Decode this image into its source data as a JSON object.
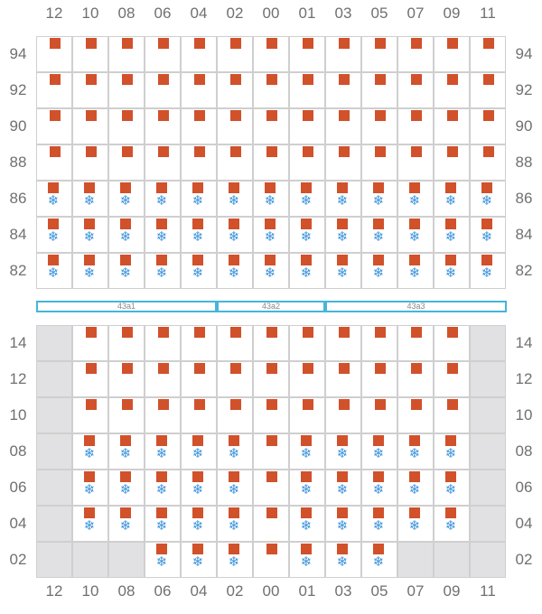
{
  "bays": [
    "12",
    "10",
    "08",
    "06",
    "04",
    "02",
    "00",
    "01",
    "03",
    "05",
    "07",
    "09",
    "11"
  ],
  "deck": {
    "tiers": [
      "94",
      "92",
      "90",
      "88",
      "86",
      "84",
      "82"
    ],
    "cells": [
      [
        "B",
        "B",
        "B",
        "B",
        "B",
        "B",
        "B",
        "B",
        "B",
        "B",
        "B",
        "B",
        "B"
      ],
      [
        "B",
        "B",
        "B",
        "B",
        "B",
        "B",
        "B",
        "B",
        "B",
        "B",
        "B",
        "B",
        "B"
      ],
      [
        "B",
        "B",
        "B",
        "B",
        "B",
        "B",
        "B",
        "B",
        "B",
        "B",
        "B",
        "B",
        "B"
      ],
      [
        "B",
        "B",
        "B",
        "B",
        "B",
        "B",
        "B",
        "B",
        "B",
        "B",
        "B",
        "B",
        "B"
      ],
      [
        "R",
        "R",
        "R",
        "R",
        "R",
        "R",
        "R",
        "R",
        "R",
        "R",
        "R",
        "R",
        "R"
      ],
      [
        "R",
        "R",
        "R",
        "R",
        "R",
        "R",
        "R",
        "R",
        "R",
        "R",
        "R",
        "R",
        "R"
      ],
      [
        "R",
        "R",
        "R",
        "R",
        "R",
        "R",
        "R",
        "R",
        "R",
        "R",
        "R",
        "R",
        "R"
      ]
    ]
  },
  "hatch_covers": [
    {
      "label": "43a1"
    },
    {
      "label": "43a2"
    },
    {
      "label": "43a3"
    }
  ],
  "hold": {
    "tiers": [
      "14",
      "12",
      "10",
      "08",
      "06",
      "04",
      "02"
    ],
    "cells": [
      [
        "X",
        "B",
        "B",
        "B",
        "B",
        "B",
        "B",
        "B",
        "B",
        "B",
        "B",
        "B",
        "X"
      ],
      [
        "X",
        "B",
        "B",
        "B",
        "B",
        "B",
        "B",
        "B",
        "B",
        "B",
        "B",
        "B",
        "X"
      ],
      [
        "X",
        "B",
        "B",
        "B",
        "B",
        "B",
        "B",
        "B",
        "B",
        "B",
        "B",
        "B",
        "X"
      ],
      [
        "X",
        "R",
        "R",
        "R",
        "R",
        "R",
        "B",
        "R",
        "R",
        "R",
        "R",
        "R",
        "X"
      ],
      [
        "X",
        "R",
        "R",
        "R",
        "R",
        "R",
        "B",
        "R",
        "R",
        "R",
        "R",
        "R",
        "X"
      ],
      [
        "X",
        "R",
        "R",
        "R",
        "R",
        "R",
        "B",
        "R",
        "R",
        "R",
        "R",
        "R",
        "X"
      ],
      [
        "X",
        "X",
        "X",
        "R",
        "R",
        "R",
        "B",
        "R",
        "R",
        "R",
        "X",
        "X",
        "X"
      ]
    ]
  },
  "legend": {
    "B": "container",
    "R": "reefer container",
    "X": "unavailable slot",
    "E": "empty slot"
  },
  "colors": {
    "container": "#d1512b",
    "reefer_icon": "#3b93db",
    "hatch_border": "#45b6d9",
    "unavailable": "#e1e1e3",
    "grid": "#cfcfcf",
    "label": "#707070"
  },
  "icons": {
    "reefer": "snowflake-icon"
  }
}
